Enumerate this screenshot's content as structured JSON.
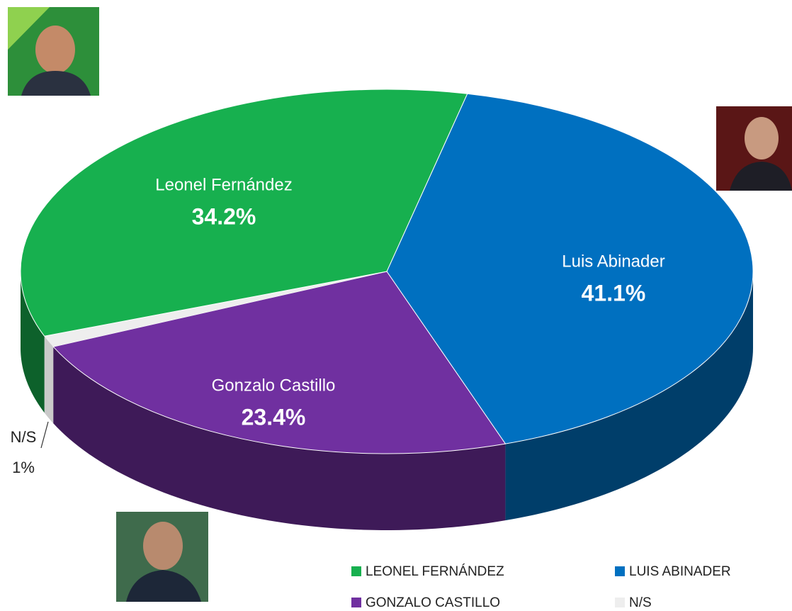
{
  "chart_data": {
    "type": "pie3d",
    "categories": [
      "LEONEL FERNÁNDEZ",
      "LUIS ABINADER",
      "GONZALO CASTILLO",
      "N/S"
    ],
    "slice_labels": [
      "Leonel Fernández",
      "Luis Abinader",
      "Gonzalo Castillo",
      "N/S"
    ],
    "values": [
      34.2,
      41.1,
      23.4,
      1
    ],
    "value_labels": [
      "34.2%",
      "41.1%",
      "23.4%",
      "1%"
    ],
    "colors": [
      "#17b04f",
      "#0070c0",
      "#7030a0",
      "#eeeeee"
    ],
    "legend": true
  }
}
